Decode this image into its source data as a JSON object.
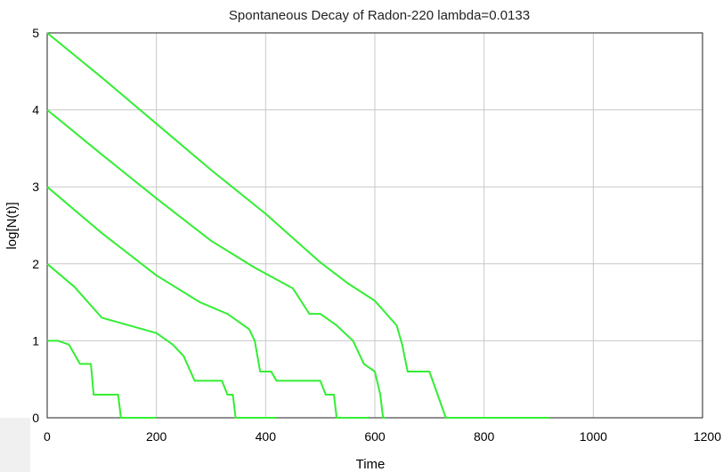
{
  "chart_data": {
    "type": "line",
    "title": "Spontaneous Decay of Radon-220 lambda=0.0133",
    "xlabel": "Time",
    "ylabel": "log[N(t)]",
    "xlim": [
      0,
      1200
    ],
    "ylim": [
      0,
      5
    ],
    "x_ticks": [
      "0",
      "200",
      "400",
      "600",
      "800",
      "1000",
      "1200"
    ],
    "y_ticks": [
      "0",
      "1",
      "2",
      "3",
      "4",
      "5"
    ],
    "grid": true,
    "line_color": "#33ee33",
    "series": [
      {
        "values": [
          [
            0,
            5
          ],
          [
            100,
            4.42
          ],
          [
            200,
            3.82
          ],
          [
            300,
            3.22
          ],
          [
            400,
            2.65
          ],
          [
            500,
            2.02
          ],
          [
            550,
            1.75
          ],
          [
            600,
            1.52
          ],
          [
            640,
            1.2
          ],
          [
            650,
            0.95
          ],
          [
            660,
            0.6
          ],
          [
            700,
            0.6
          ],
          [
            715,
            0.3
          ],
          [
            730,
            0
          ],
          [
            920,
            0
          ]
        ]
      },
      {
        "values": [
          [
            0,
            4
          ],
          [
            100,
            3.42
          ],
          [
            200,
            2.85
          ],
          [
            300,
            2.3
          ],
          [
            380,
            1.95
          ],
          [
            450,
            1.68
          ],
          [
            480,
            1.35
          ],
          [
            500,
            1.35
          ],
          [
            530,
            1.2
          ],
          [
            560,
            1.0
          ],
          [
            580,
            0.7
          ],
          [
            600,
            0.6
          ],
          [
            610,
            0.3
          ],
          [
            615,
            0
          ],
          [
            620,
            0
          ]
        ]
      },
      {
        "values": [
          [
            0,
            3
          ],
          [
            100,
            2.4
          ],
          [
            200,
            1.85
          ],
          [
            280,
            1.5
          ],
          [
            330,
            1.35
          ],
          [
            370,
            1.15
          ],
          [
            380,
            1.0
          ],
          [
            390,
            0.6
          ],
          [
            410,
            0.6
          ],
          [
            420,
            0.48
          ],
          [
            460,
            0.48
          ],
          [
            500,
            0.48
          ],
          [
            510,
            0.3
          ],
          [
            525,
            0.3
          ],
          [
            530,
            0
          ],
          [
            590,
            0
          ]
        ]
      },
      {
        "values": [
          [
            0,
            2
          ],
          [
            50,
            1.7
          ],
          [
            100,
            1.3
          ],
          [
            150,
            1.2
          ],
          [
            200,
            1.1
          ],
          [
            230,
            0.95
          ],
          [
            250,
            0.8
          ],
          [
            270,
            0.48
          ],
          [
            320,
            0.48
          ],
          [
            330,
            0.3
          ],
          [
            340,
            0.3
          ],
          [
            345,
            0
          ],
          [
            420,
            0
          ]
        ]
      },
      {
        "values": [
          [
            0,
            1
          ],
          [
            20,
            1.0
          ],
          [
            40,
            0.95
          ],
          [
            60,
            0.7
          ],
          [
            80,
            0.7
          ],
          [
            85,
            0.3
          ],
          [
            130,
            0.3
          ],
          [
            135,
            0
          ],
          [
            200,
            0
          ]
        ]
      }
    ]
  }
}
